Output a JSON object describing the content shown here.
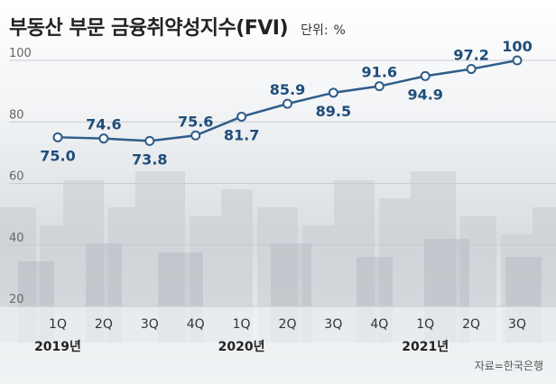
{
  "header": {
    "title": "부동산 부문 금융취약성지수(FVI)",
    "unit_label": "단위:",
    "unit_value": "%"
  },
  "source": "자료=한국은행",
  "chart_data": {
    "type": "line",
    "title": "부동산 부문 금융취약성지수(FVI)",
    "xlabel": "",
    "ylabel": "",
    "unit": "%",
    "categories": [
      "1Q",
      "2Q",
      "3Q",
      "4Q",
      "1Q",
      "2Q",
      "3Q",
      "4Q",
      "1Q",
      "2Q",
      "3Q"
    ],
    "year_labels": [
      {
        "label": "2019년",
        "start_index": 0
      },
      {
        "label": "2020년",
        "start_index": 4
      },
      {
        "label": "2021년",
        "start_index": 8
      }
    ],
    "series": [
      {
        "values": [
          75.0,
          74.6,
          73.8,
          75.6,
          81.7,
          85.9,
          89.5,
          91.6,
          94.9,
          97.2,
          100
        ]
      }
    ],
    "data_labels": [
      "75.0",
      "74.6",
      "73.8",
      "75.6",
      "81.7",
      "85.9",
      "89.5",
      "91.6",
      "94.9",
      "97.2",
      "100"
    ],
    "label_position": [
      "below",
      "above",
      "below",
      "above",
      "below",
      "above",
      "below",
      "above",
      "below",
      "above",
      "above"
    ],
    "yticks": [
      20,
      40,
      60,
      80,
      100
    ],
    "ylim": [
      20,
      100
    ],
    "grid": true,
    "legend": "none",
    "colors": {
      "line": "#2f5d8a",
      "label": "#1f4d7a",
      "marker_fill": "#ffffff",
      "grid": "#c7ccd2",
      "tick": "#666666"
    }
  }
}
